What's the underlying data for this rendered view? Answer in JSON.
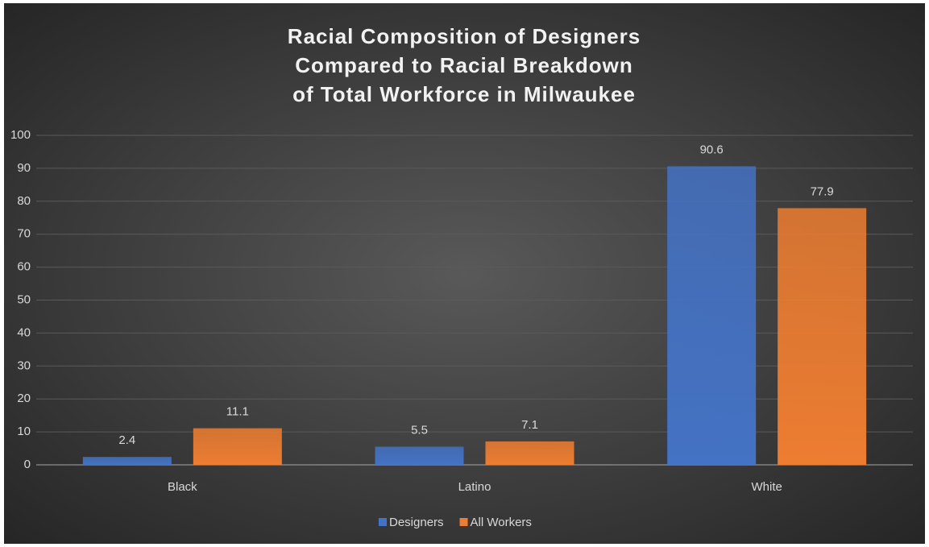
{
  "chart_data": {
    "type": "bar",
    "title": [
      "Racial Composition of Designers",
      "Compared to Racial Breakdown",
      "of Total Workforce in Milwaukee"
    ],
    "categories": [
      "Black",
      "Latino",
      "White"
    ],
    "series": [
      {
        "name": "Designers",
        "color": "#4472c4",
        "values": [
          2.4,
          5.5,
          90.6
        ]
      },
      {
        "name": "All Workers",
        "color": "#ed7d31",
        "values": [
          11.1,
          7.1,
          77.9
        ]
      }
    ],
    "ylim": [
      0,
      100
    ],
    "yticks": [
      0,
      10,
      20,
      30,
      40,
      50,
      60,
      70,
      80,
      90,
      100
    ],
    "grid": true,
    "legend": "bottom",
    "data_labels": true
  }
}
